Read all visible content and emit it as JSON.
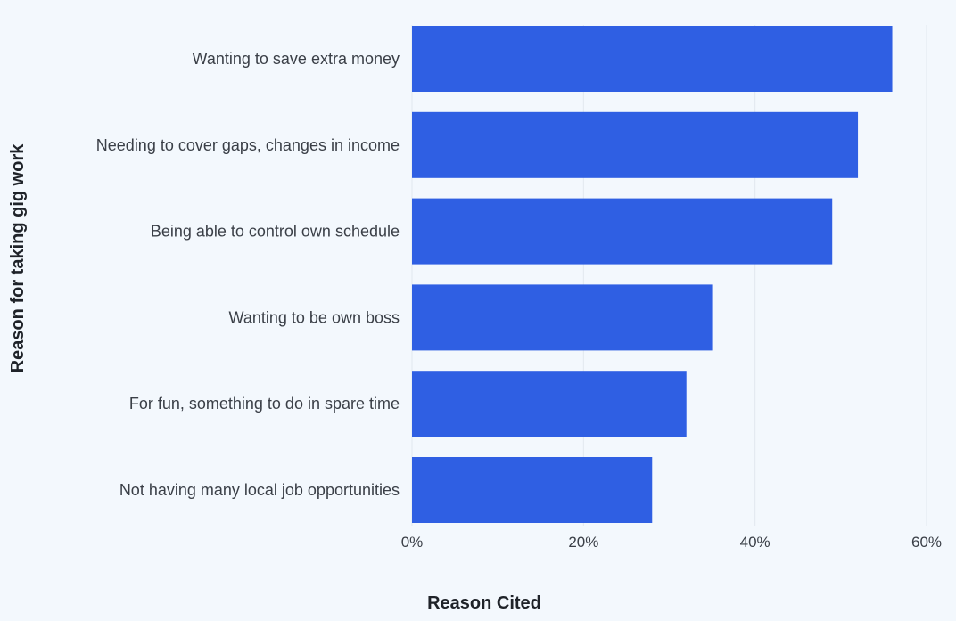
{
  "chart_data": {
    "type": "bar",
    "orientation": "horizontal",
    "categories": [
      "Wanting to save extra money",
      "Needing to cover gaps, changes in income",
      "Being able to control own schedule",
      "Wanting to be own boss",
      "For fun, something to do in spare time",
      "Not having many local job opportunities"
    ],
    "values": [
      56,
      52,
      49,
      35,
      32,
      28
    ],
    "title": "",
    "xlabel": "Reason Cited",
    "ylabel": "Reason for taking gig work",
    "xlim": [
      0,
      60
    ],
    "xticks": [
      0,
      20,
      40,
      60
    ],
    "xtick_labels": [
      "0%",
      "20%",
      "40%",
      "60%"
    ],
    "grid": true,
    "bar_color": "#2f5fe3"
  }
}
